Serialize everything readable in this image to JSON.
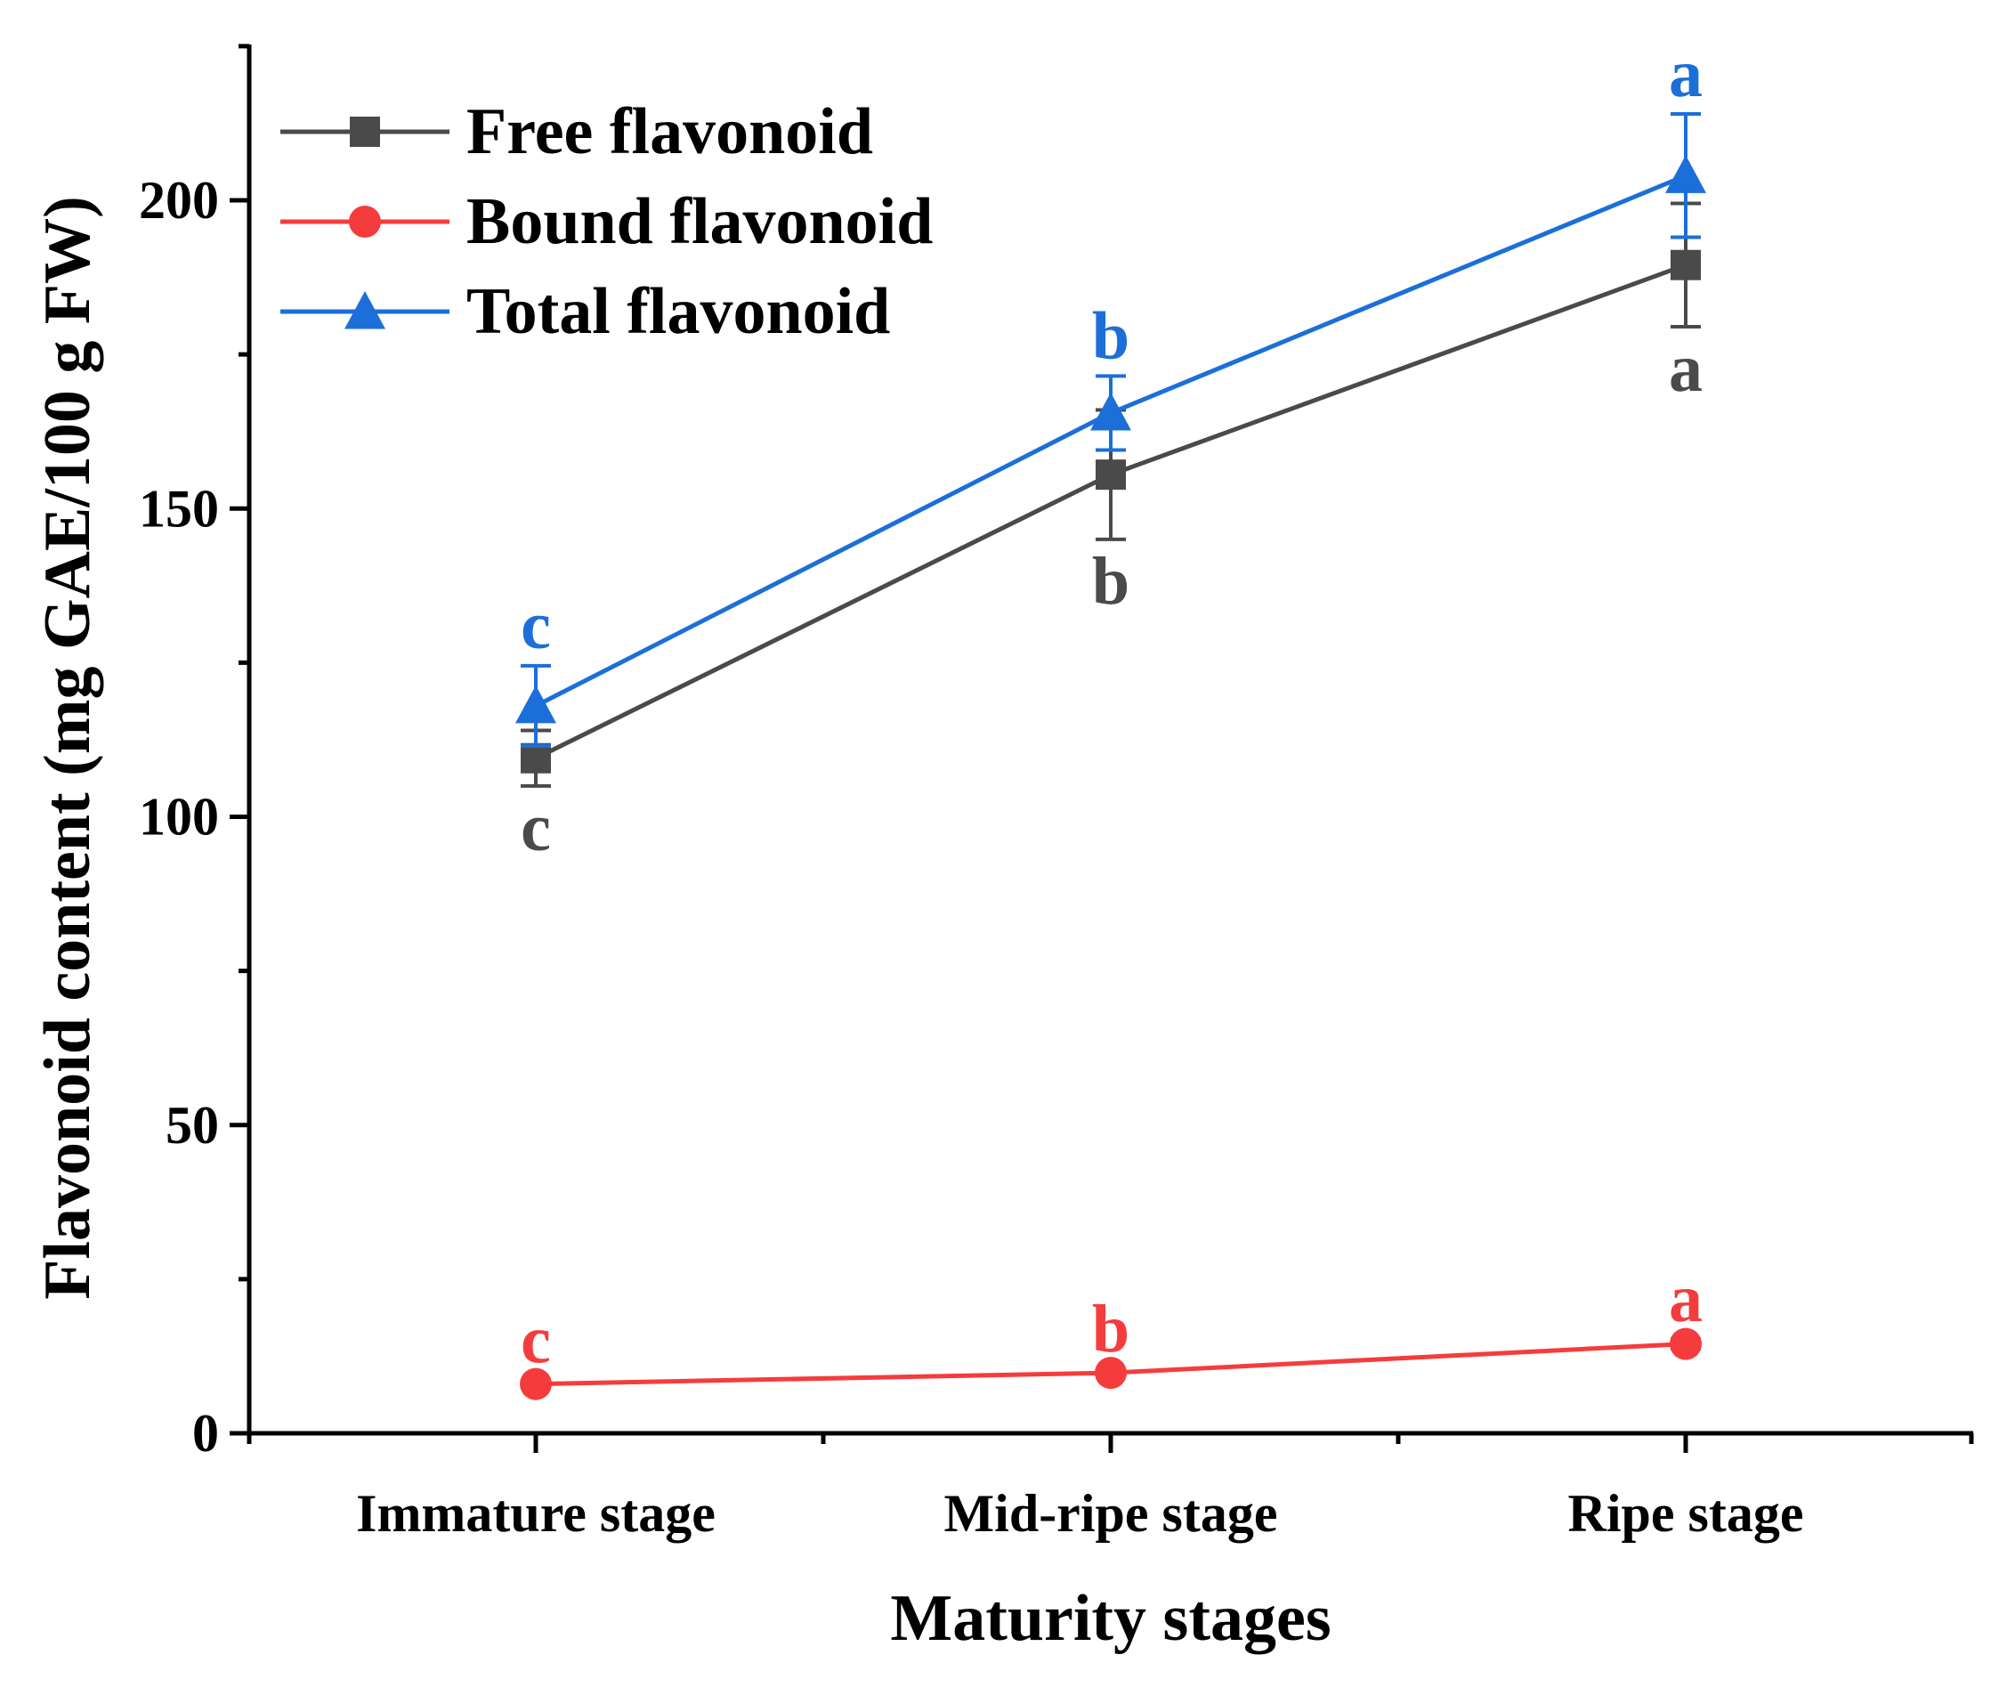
{
  "chart_data": {
    "type": "line",
    "title": "",
    "xlabel": "Maturity stages",
    "ylabel": "Flavonoid content (mg GAE/100 g FW)",
    "categories": [
      "Immature stage",
      "Mid-ripe stage",
      "Ripe stage"
    ],
    "ylim": [
      0,
      225
    ],
    "yticks": [
      0,
      50,
      100,
      150,
      200
    ],
    "legend_position": "top-left",
    "series": [
      {
        "name": "Free flavonoid",
        "color": "#4a4a4a",
        "marker": "square",
        "values": [
          109.5,
          155.5,
          189.5
        ],
        "errors": [
          4.5,
          10.5,
          10.0
        ],
        "letters": [
          "c",
          "b",
          "a"
        ],
        "letter_position": "below"
      },
      {
        "name": "Bound flavonoid",
        "color": "#f53c3c",
        "marker": "circle",
        "values": [
          8.0,
          9.8,
          14.5
        ],
        "errors": [
          0.6,
          0.6,
          0.8
        ],
        "letters": [
          "c",
          "b",
          "a"
        ],
        "letter_position": "above"
      },
      {
        "name": "Total flavonoid",
        "color": "#1c6fd8",
        "marker": "triangle",
        "values": [
          118.0,
          165.5,
          204.0
        ],
        "errors": [
          6.5,
          6.0,
          10.0
        ],
        "letters": [
          "c",
          "b",
          "a"
        ],
        "letter_position": "above"
      }
    ]
  }
}
